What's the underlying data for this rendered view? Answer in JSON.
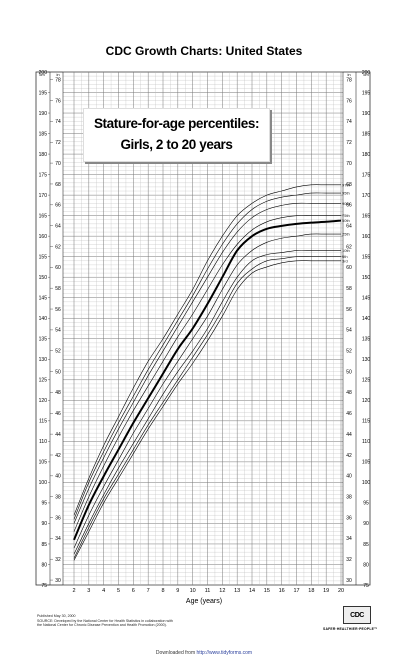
{
  "page_title": "CDC Growth Charts: United States",
  "footer": {
    "published": "Published May 30, 2000",
    "source_line1": "SOURCE: Developed by the National Center for Health Statistics in collaboration with",
    "source_line2": "the National Center for Chronic Disease Prevention and Health Promotion (2000).",
    "logo": "CDC",
    "logo_tag": "SAFER·HEALTHIER·PEOPLE™",
    "download_prefix": "Downloaded from",
    "download_url": "http://www.tidyforms.com"
  },
  "chart_data": {
    "type": "line",
    "title": "Stature-for-age percentiles:",
    "subtitle": "Girls, 2 to 20 years",
    "xlabel": "Age (years)",
    "x_ticks": [
      2,
      3,
      4,
      5,
      6,
      7,
      8,
      9,
      10,
      11,
      12,
      13,
      14,
      15,
      16,
      17,
      18,
      19,
      20
    ],
    "xlim": [
      2,
      20
    ],
    "ylim_cm": [
      75,
      200
    ],
    "ylabel_left": "cm",
    "ylabel_right": "in",
    "y_ticks_cm": [
      75,
      80,
      85,
      90,
      95,
      100,
      105,
      110,
      115,
      120,
      125,
      130,
      135,
      140,
      145,
      150,
      155,
      160,
      165,
      170,
      175,
      180,
      185,
      190,
      195,
      200
    ],
    "y_ticks_in": [
      30,
      32,
      34,
      36,
      38,
      40,
      42,
      44,
      46,
      48,
      50,
      52,
      54,
      56,
      58,
      60,
      62,
      64,
      66,
      68,
      70,
      72,
      74,
      76,
      78
    ],
    "grid": true,
    "x": [
      2,
      3,
      4,
      5,
      6,
      7,
      8,
      9,
      10,
      11,
      12,
      13,
      14,
      15,
      16,
      17,
      18,
      19,
      20
    ],
    "series": [
      {
        "name": "97th",
        "values": [
          92,
          101,
          109,
          116,
          123,
          129.5,
          135,
          141,
          147,
          154,
          160,
          165,
          168,
          170,
          171,
          172,
          172.5,
          172.5,
          172.5
        ]
      },
      {
        "name": "95th",
        "values": [
          91,
          100,
          107.5,
          114.5,
          121,
          127.5,
          133.5,
          139.5,
          145.5,
          152,
          158,
          163,
          166.5,
          168.5,
          169.5,
          170,
          170.5,
          170.5,
          170.5
        ]
      },
      {
        "name": "90th",
        "values": [
          90,
          98.5,
          106,
          113,
          119.5,
          126,
          132,
          138,
          144,
          150,
          156,
          161,
          164.5,
          166.5,
          167.5,
          168,
          168,
          168,
          168
        ]
      },
      {
        "name": "75th",
        "values": [
          88,
          96.5,
          104,
          111,
          117.5,
          123.5,
          129.5,
          135.5,
          141,
          147,
          153,
          158,
          161.5,
          163.5,
          164.5,
          165,
          165,
          165,
          165
        ]
      },
      {
        "name": "50th",
        "values": [
          86,
          94.5,
          101.5,
          108,
          114.5,
          120.5,
          126.5,
          132.5,
          137.5,
          143.5,
          150,
          156.5,
          160,
          161.8,
          162.5,
          163,
          163.3,
          163.5,
          163.8
        ]
      },
      {
        "name": "25th",
        "values": [
          84,
          92,
          99,
          105.5,
          112,
          118,
          124,
          129.5,
          135,
          140.5,
          147,
          153,
          156.5,
          158.5,
          159.5,
          160,
          160.5,
          160.5,
          160.5
        ]
      },
      {
        "name": "10th",
        "values": [
          82.5,
          90,
          97,
          103.5,
          109.5,
          115.5,
          121.5,
          127,
          132,
          137.5,
          144,
          150,
          154,
          155.5,
          156,
          156.5,
          156.5,
          156.5,
          156.5
        ]
      },
      {
        "name": "5th",
        "values": [
          81.5,
          89,
          96,
          102,
          108,
          114,
          119.5,
          125,
          130.5,
          136,
          142,
          148.5,
          152,
          154,
          154.5,
          155,
          155,
          155,
          155
        ]
      },
      {
        "name": "3rd",
        "values": [
          81,
          88,
          95,
          101,
          107,
          113,
          118.5,
          124,
          129,
          134.5,
          140.5,
          147,
          151,
          152.5,
          153.5,
          154,
          154,
          154,
          154
        ]
      }
    ]
  }
}
